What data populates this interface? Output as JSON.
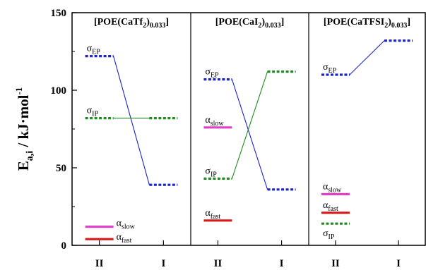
{
  "chart_data": {
    "type": "line",
    "ylabel": {
      "main": "E",
      "sub": "a,i",
      "unit": " / kJ·mol",
      "sup": "-1"
    },
    "ylim": [
      0,
      150
    ],
    "yticks": [
      0,
      50,
      100,
      150
    ],
    "panels": [
      {
        "title": {
          "prefix": "[POE(CaTf",
          "mid": "2",
          "paren": ")",
          "conc": "0.033",
          "suffix": "]"
        },
        "xticks": [
          "II",
          "I"
        ],
        "series": [
          {
            "label": "σEP",
            "label_main": "σ",
            "label_sub": "EP",
            "color": "#1a22c8",
            "dash": true,
            "II": 122,
            "I": 39,
            "label_side": "II-above"
          },
          {
            "label": "σIP",
            "label_main": "σ",
            "label_sub": "IP",
            "color": "#1f8a1f",
            "dash": true,
            "II": 82,
            "I": 82,
            "label_side": "II-above"
          },
          {
            "label": "αslow",
            "label_main": "α",
            "label_sub": "slow",
            "color": "#e040c8",
            "dash": false,
            "II": 12,
            "I": null,
            "label_side": "right"
          },
          {
            "label": "αfast",
            "label_main": "α",
            "label_sub": "fast",
            "color": "#d81818",
            "dash": false,
            "II": 4,
            "I": null,
            "label_side": "right-below"
          }
        ]
      },
      {
        "title": {
          "prefix": "[POE(CaI",
          "mid": "2",
          "paren": ")",
          "conc": "0.033",
          "suffix": "]"
        },
        "xticks": [
          "II",
          "I"
        ],
        "series": [
          {
            "label": "σEP",
            "label_main": "σ",
            "label_sub": "EP",
            "color": "#1a22c8",
            "dash": true,
            "II": 107,
            "I": 36,
            "label_side": "II-above"
          },
          {
            "label": "σIP",
            "label_main": "σ",
            "label_sub": "IP",
            "color": "#1f8a1f",
            "dash": true,
            "II": 43,
            "I": 112,
            "label_side": "II-above"
          },
          {
            "label": "αslow",
            "label_main": "α",
            "label_sub": "slow",
            "color": "#e040c8",
            "dash": false,
            "II": 76,
            "I": null,
            "label_side": "II-above"
          },
          {
            "label": "αfast",
            "label_main": "α",
            "label_sub": "fast",
            "color": "#d81818",
            "dash": false,
            "II": 16,
            "I": null,
            "label_side": "II-above"
          }
        ]
      },
      {
        "title": {
          "prefix": "[POE(CaTFSI",
          "mid": "2",
          "paren": ")",
          "conc": "0.033",
          "suffix": "]"
        },
        "xticks": [
          "II",
          "I"
        ],
        "series": [
          {
            "label": "σEP",
            "label_main": "σ",
            "label_sub": "EP",
            "color": "#1a22c8",
            "dash": true,
            "II": 110,
            "I": 132,
            "label_side": "II-above"
          },
          {
            "label": "αslow",
            "label_main": "α",
            "label_sub": "slow",
            "color": "#e040c8",
            "dash": false,
            "II": 33,
            "I": null,
            "label_side": "II-above"
          },
          {
            "label": "αfast",
            "label_main": "α",
            "label_sub": "fast",
            "color": "#d81818",
            "dash": false,
            "II": 21,
            "I": null,
            "label_side": "II-above"
          },
          {
            "label": "σIP",
            "label_main": "σ",
            "label_sub": "IP",
            "color": "#1f8a1f",
            "dash": true,
            "II": 14,
            "I": null,
            "label_side": "II-below"
          }
        ]
      }
    ]
  }
}
